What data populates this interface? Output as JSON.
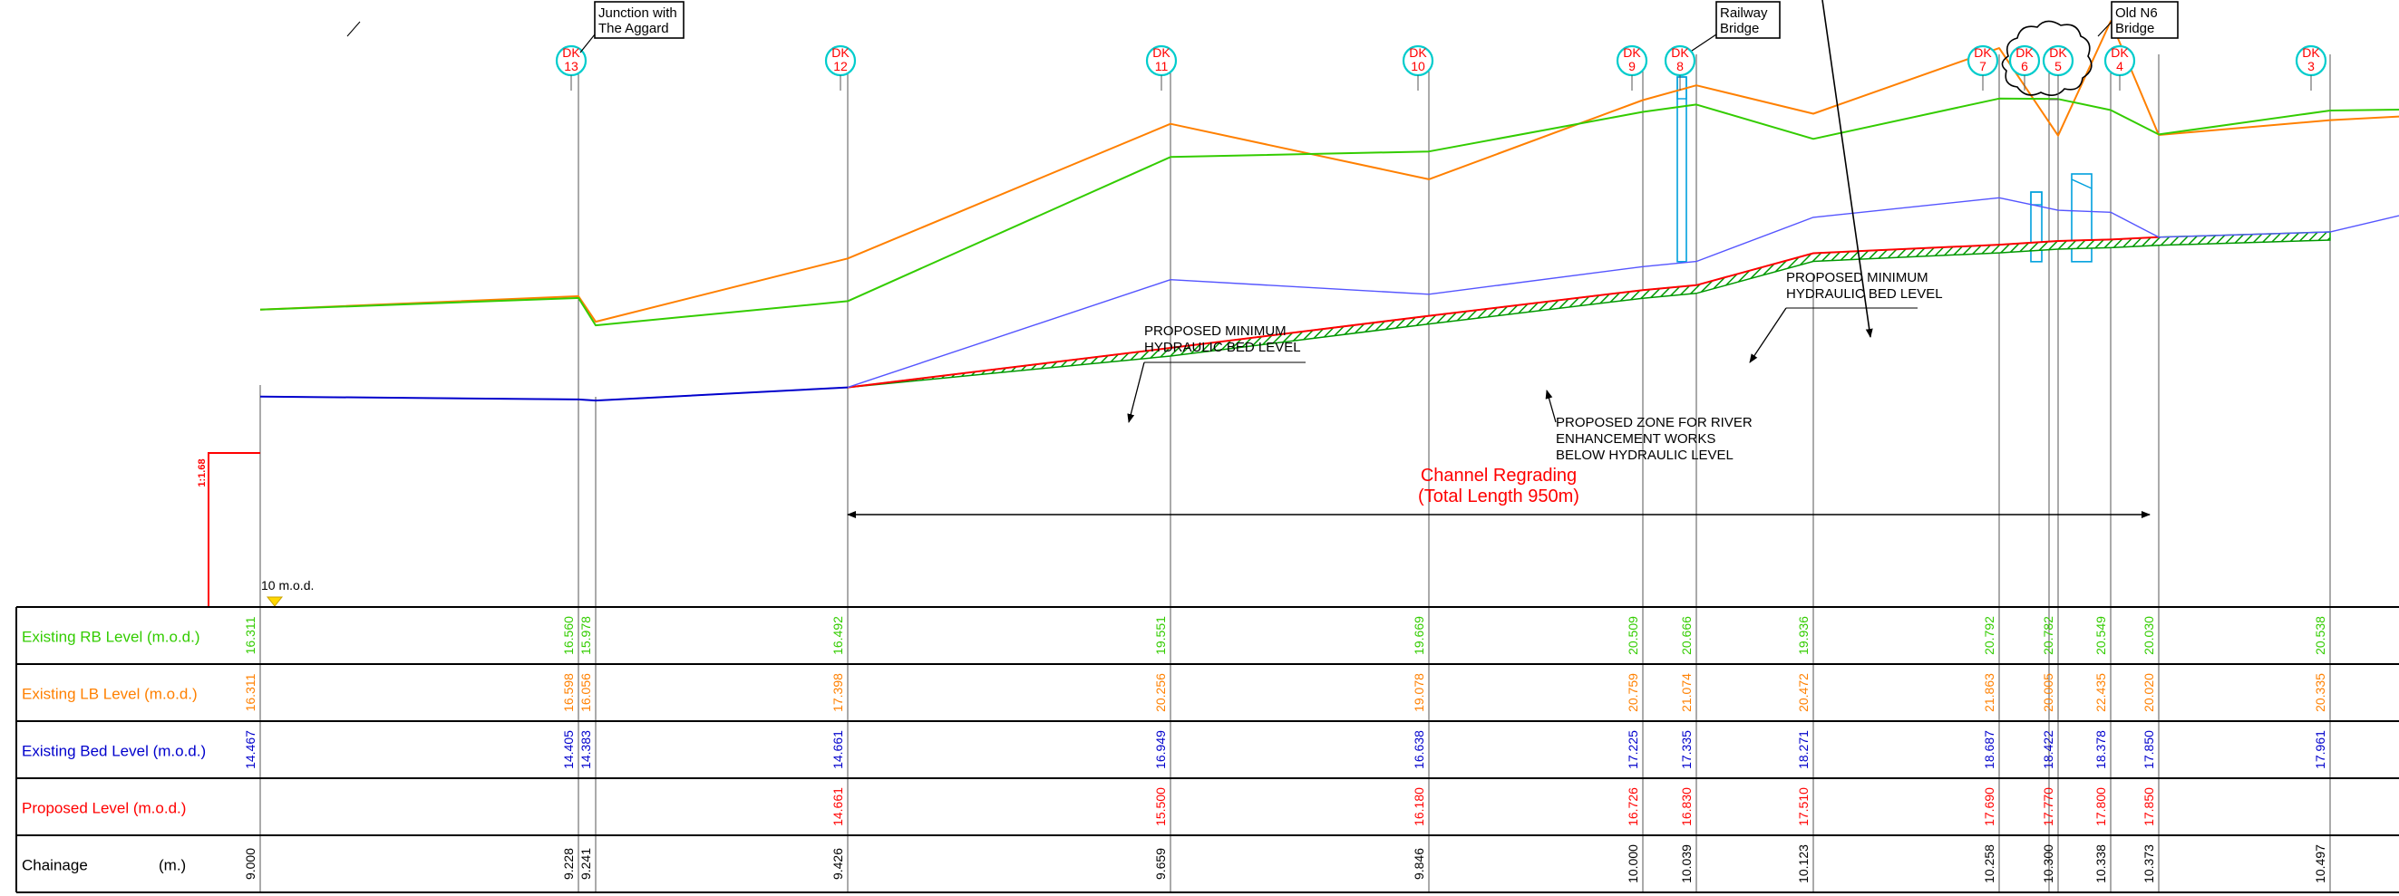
{
  "colors": {
    "rb": "#33cc00",
    "lb": "#ff8000",
    "bed": "#0000cc",
    "bed_light": "#5555ff",
    "proposed": "#ff0000",
    "zone": "#009900",
    "bridge": "#00a0dd",
    "marker": "#00cccc",
    "marker_text": "#ff0000",
    "grid": "#000000",
    "datum_arrow": "#ffd700"
  },
  "markers": [
    {
      "id": "dk13",
      "l1": "DK",
      "l2": "13"
    },
    {
      "id": "dk12",
      "l1": "DK",
      "l2": "12"
    },
    {
      "id": "dk11",
      "l1": "DK",
      "l2": "11"
    },
    {
      "id": "dk10",
      "l1": "DK",
      "l2": "10"
    },
    {
      "id": "dk9",
      "l1": "DK",
      "l2": "9"
    },
    {
      "id": "dk8",
      "l1": "DK",
      "l2": "8"
    },
    {
      "id": "dk7",
      "l1": "DK",
      "l2": "7"
    },
    {
      "id": "dk6",
      "l1": "DK",
      "l2": "6"
    },
    {
      "id": "dk5",
      "l1": "DK",
      "l2": "5"
    },
    {
      "id": "dk4",
      "l1": "DK",
      "l2": "4"
    },
    {
      "id": "dk3",
      "l1": "DK",
      "l2": "3"
    }
  ],
  "callouts": {
    "aggard": [
      "Junction with",
      "The Aggard"
    ],
    "railway": [
      "Railway",
      "Bridge"
    ],
    "n6": [
      "Old N6",
      "Bridge"
    ]
  },
  "annotations": {
    "bed_level_1": [
      "PROPOSED MINIMUM",
      "HYDRAULIC BED LEVEL"
    ],
    "bed_level_2": [
      "PROPOSED MINIMUM",
      "HYDRAULIC BED LEVEL"
    ],
    "zone": [
      "PROPOSED ZONE FOR RIVER",
      "ENHANCEMENT WORKS",
      "BELOW HYDRAULIC LEVEL"
    ],
    "channel": [
      "Channel Regrading",
      "(Total Length 950m)"
    ],
    "datum": "10 m.o.d.",
    "vertical_scale": "1:1.68"
  },
  "table": {
    "rows": [
      {
        "key": "rb",
        "label": "Existing RB Level (m.o.d.)",
        "unit": ""
      },
      {
        "key": "lb",
        "label": "Existing LB Level (m.o.d.)",
        "unit": ""
      },
      {
        "key": "bed",
        "label": "Existing Bed Level (m.o.d.)",
        "unit": ""
      },
      {
        "key": "proposed",
        "label": "Proposed Level (m.o.d.)",
        "unit": ""
      },
      {
        "key": "chainage",
        "label": "Chainage",
        "unit": "(m.)"
      }
    ],
    "columns": [
      {
        "chainage": "9.000",
        "rb": "16.311",
        "lb": "16.311",
        "bed": "14.467",
        "proposed": ""
      },
      {
        "chainage": "9.228",
        "rb": "16.560",
        "lb": "16.598",
        "bed": "14.405",
        "proposed": ""
      },
      {
        "chainage": "9.241",
        "rb": "15.978",
        "lb": "16.056",
        "bed": "14.383",
        "proposed": ""
      },
      {
        "chainage": "9.426",
        "rb": "16.492",
        "lb": "17.398",
        "bed": "14.661",
        "proposed": "14.661"
      },
      {
        "chainage": "9.659",
        "rb": "19.551",
        "lb": "20.256",
        "bed": "16.949",
        "proposed": "15.500"
      },
      {
        "chainage": "9.846",
        "rb": "19.669",
        "lb": "19.078",
        "bed": "16.638",
        "proposed": "16.180"
      },
      {
        "chainage": "10.000",
        "rb": "20.509",
        "lb": "20.759",
        "bed": "17.225",
        "proposed": "16.726"
      },
      {
        "chainage": "10.039",
        "rb": "20.666",
        "lb": "21.074",
        "bed": "17.335",
        "proposed": "16.830"
      },
      {
        "chainage": "10.123",
        "rb": "19.936",
        "lb": "20.472",
        "bed": "18.271",
        "proposed": "17.510"
      },
      {
        "chainage": "10.258",
        "rb": "20.792",
        "lb": "21.863",
        "bed": "18.687",
        "proposed": "17.690"
      },
      {
        "chainage": "10.300",
        "rb": "20.782",
        "lb": "20.005",
        "bed": "18.422",
        "proposed": "17.770"
      },
      {
        "chainage": "10.338",
        "rb": "20.549",
        "lb": "22.435",
        "bed": "18.378",
        "proposed": "17.800"
      },
      {
        "chainage": "10.373",
        "rb": "20.030",
        "lb": "20.020",
        "bed": "17.850",
        "proposed": "17.850"
      },
      {
        "chainage": "10.497",
        "rb": "20.538",
        "lb": "20.335",
        "bed": "17.961",
        "proposed": ""
      }
    ]
  },
  "chart_data": {
    "type": "line",
    "x": [
      9.0,
      9.228,
      9.241,
      9.426,
      9.659,
      9.846,
      10.0,
      10.039,
      10.123,
      10.258,
      10.3,
      10.338,
      10.373,
      10.497
    ],
    "series": [
      {
        "name": "Existing RB Level (m.o.d.)",
        "values": [
          16.311,
          16.56,
          15.978,
          16.492,
          19.551,
          19.669,
          20.509,
          20.666,
          19.936,
          20.792,
          20.782,
          20.549,
          20.03,
          20.538
        ]
      },
      {
        "name": "Existing LB Level (m.o.d.)",
        "values": [
          16.311,
          16.598,
          16.056,
          17.398,
          20.256,
          19.078,
          20.759,
          21.074,
          20.472,
          21.863,
          20.005,
          22.435,
          20.02,
          20.335
        ]
      },
      {
        "name": "Existing Bed Level (m.o.d.)",
        "values": [
          14.467,
          14.405,
          14.383,
          14.661,
          16.949,
          16.638,
          17.225,
          17.335,
          18.271,
          18.687,
          18.422,
          18.378,
          17.85,
          17.961
        ]
      },
      {
        "name": "Proposed Level (m.o.d.)",
        "values": [
          null,
          null,
          null,
          14.661,
          15.5,
          16.18,
          16.726,
          16.83,
          17.51,
          17.69,
          17.77,
          17.8,
          17.85,
          null
        ]
      }
    ],
    "xlabel": "Chainage",
    "ylabel": "",
    "datum": 10
  }
}
